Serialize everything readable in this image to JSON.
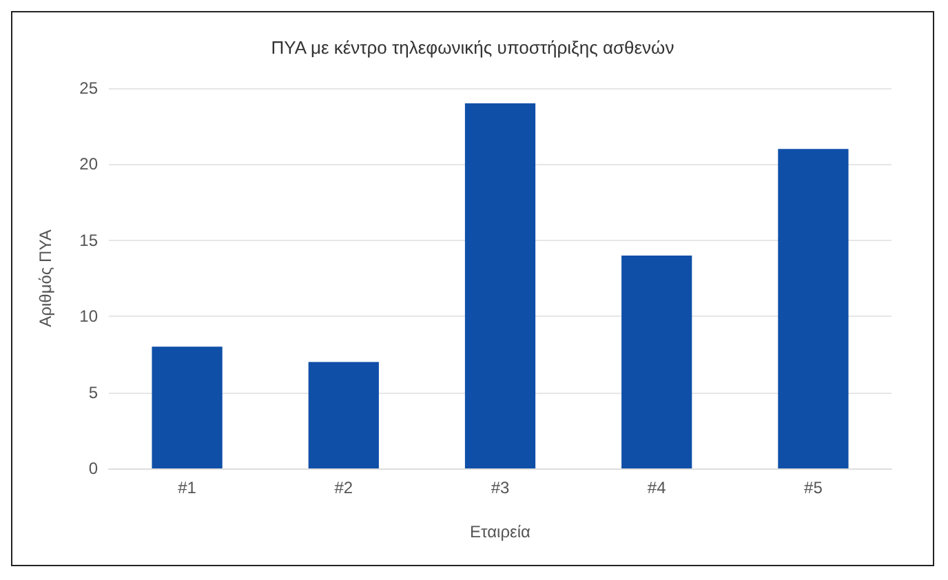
{
  "chart_data": {
    "type": "bar",
    "title": "ΠΥΑ με κέντρο τηλεφωνικής υποστήριξης ασθενών",
    "xlabel": "Εταιρεία",
    "ylabel": "Αριθμός ΠΥΑ",
    "categories": [
      "#1",
      "#2",
      "#3",
      "#4",
      "#5"
    ],
    "values": [
      8,
      7,
      24,
      14,
      21
    ],
    "color": "#0f4fa8",
    "ylim": [
      0,
      25
    ],
    "yticks": [
      0,
      5,
      10,
      15,
      20,
      25
    ],
    "grid": "y"
  }
}
